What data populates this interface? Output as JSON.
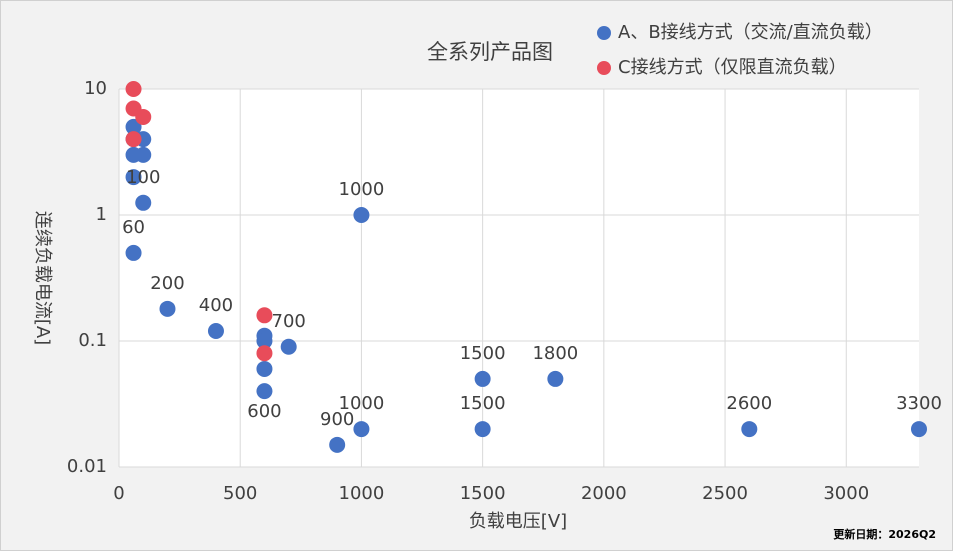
{
  "chart_data": {
    "type": "scatter",
    "title": "全系列产品图",
    "x_label": "负载电压[V]",
    "y_label": "连续负载电流[A]",
    "footer": "更新日期：2026Q2",
    "xlim": [
      0,
      3300
    ],
    "xticks": [
      0,
      500,
      1000,
      1500,
      2000,
      2500,
      3000
    ],
    "ylim": [
      0.01,
      10
    ],
    "yticks": [
      0.01,
      0.1,
      1,
      10
    ],
    "y_scale": "log",
    "grid": true,
    "legend": "top-right",
    "series": [
      {
        "name": "A、B接线方式（交流/直流负载）",
        "color": "#4472c4",
        "x": [
          60,
          60,
          60,
          60,
          60,
          100,
          100,
          100,
          200,
          400,
          600,
          600,
          600,
          600,
          700,
          900,
          1000,
          1000,
          1500,
          1500,
          1800,
          2600,
          3300
        ],
        "values": [
          5,
          4,
          3,
          2,
          0.5,
          4,
          3,
          1.25,
          0.18,
          0.12,
          0.11,
          0.1,
          0.06,
          0.04,
          0.09,
          0.015,
          1,
          0.02,
          0.05,
          0.02,
          0.05,
          0.02,
          0.02
        ],
        "labels": [
          null,
          null,
          null,
          null,
          "60",
          null,
          null,
          "100",
          "200",
          "400",
          null,
          null,
          null,
          "600",
          "700",
          "900",
          "1000",
          "1000",
          "1500",
          "1500",
          "1800",
          "2600",
          "3300"
        ]
      },
      {
        "name": "C接线方式（仅限直流负载）",
        "color": "#e84c5a",
        "x": [
          60,
          60,
          60,
          100,
          600,
          600
        ],
        "values": [
          10,
          7,
          4,
          6,
          0.16,
          0.08
        ]
      }
    ]
  }
}
